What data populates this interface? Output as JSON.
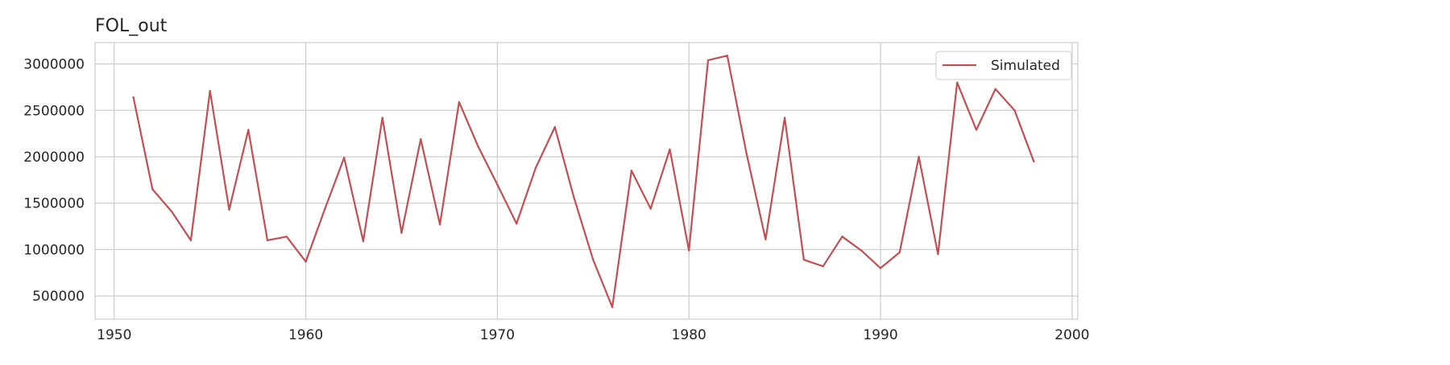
{
  "chart_data": {
    "type": "line",
    "title": "FOL_out",
    "xlabel": "",
    "ylabel": "",
    "xlim": [
      1949,
      2000.3
    ],
    "ylim": [
      250000,
      3230000
    ],
    "xticks": [
      1950,
      1960,
      1970,
      1980,
      1990,
      2000
    ],
    "yticks": [
      500000,
      1000000,
      1500000,
      2000000,
      2500000,
      3000000
    ],
    "x_tick_labels": [
      "1950",
      "1960",
      "1970",
      "1980",
      "1990",
      "2000"
    ],
    "y_tick_labels": [
      "500000",
      "1000000",
      "1500000",
      "2000000",
      "2500000",
      "3000000"
    ],
    "grid": true,
    "legend_position": "top-right",
    "series": [
      {
        "name": "Simulated",
        "color": "#c44e52",
        "x": [
          1951,
          1952,
          1953,
          1954,
          1955,
          1956,
          1957,
          1958,
          1959,
          1960,
          1961,
          1962,
          1963,
          1964,
          1965,
          1966,
          1967,
          1968,
          1969,
          1970,
          1971,
          1972,
          1973,
          1974,
          1975,
          1976,
          1977,
          1978,
          1979,
          1980,
          1981,
          1982,
          1983,
          1984,
          1985,
          1986,
          1987,
          1988,
          1989,
          1990,
          1991,
          1992,
          1993,
          1994,
          1995,
          1996,
          1997,
          1998
        ],
        "values": [
          2640000,
          1650000,
          1410000,
          1100000,
          2710000,
          1430000,
          2290000,
          1100000,
          1140000,
          870000,
          1440000,
          1990000,
          1090000,
          2420000,
          1180000,
          2190000,
          1270000,
          2590000,
          2110000,
          1700000,
          1280000,
          1880000,
          2320000,
          1560000,
          890000,
          380000,
          1850000,
          1440000,
          2080000,
          990000,
          3040000,
          3090000,
          2040000,
          1110000,
          2420000,
          890000,
          820000,
          1140000,
          990000,
          800000,
          970000,
          2000000,
          950000,
          2800000,
          2290000,
          2730000,
          2500000,
          1950000
        ]
      }
    ]
  }
}
